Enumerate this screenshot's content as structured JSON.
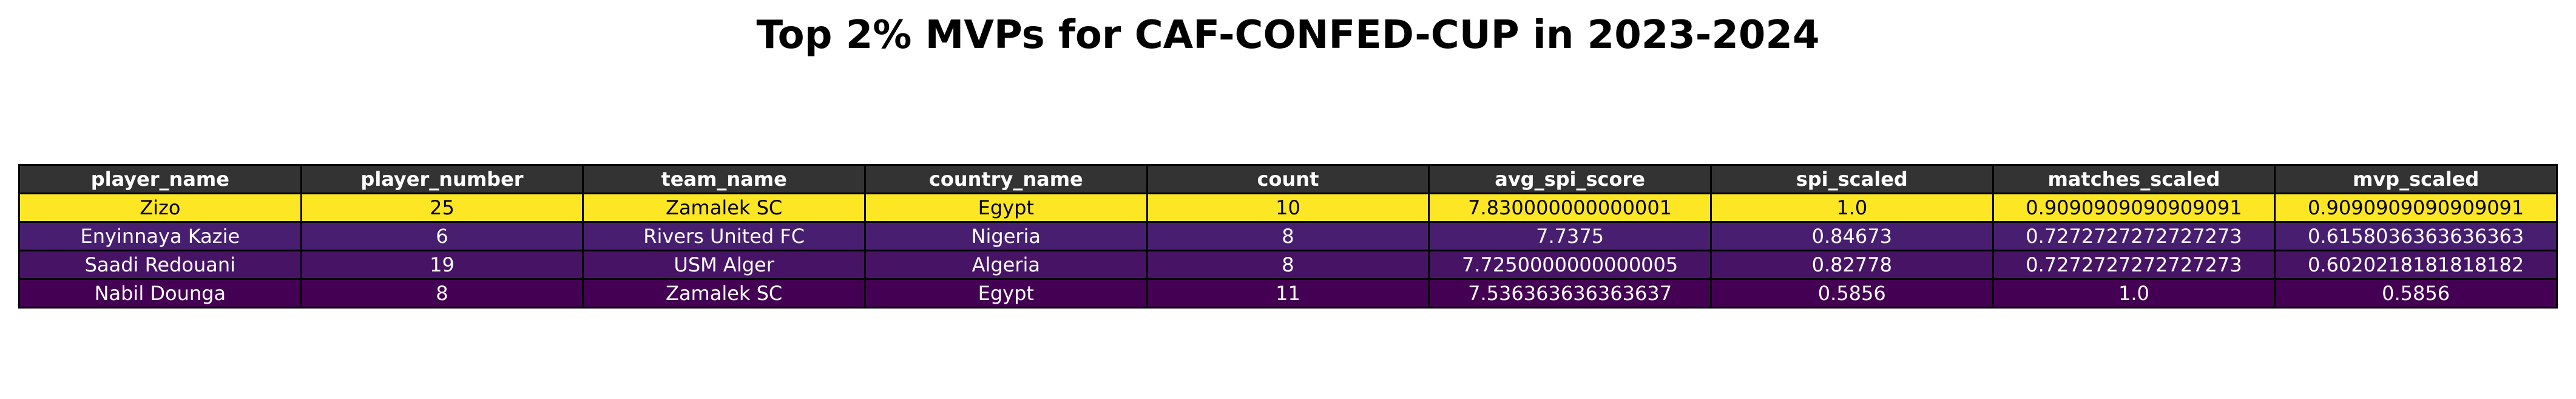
{
  "chart_data": {
    "type": "table",
    "title": "Top 2% MVPs for CAF-CONFED-CUP in 2023-2024",
    "columns": [
      "player_name",
      "player_number",
      "team_name",
      "country_name",
      "count",
      "avg_spi_score",
      "spi_scaled",
      "matches_scaled",
      "mvp_scaled"
    ],
    "rows": [
      {
        "cells": [
          "Zizo",
          "25",
          "Zamalek SC",
          "Egypt",
          "10",
          "7.830000000000001",
          "1.0",
          "0.9090909090909091",
          "0.9090909090909091"
        ],
        "color": "#fde725"
      },
      {
        "cells": [
          "Enyinnaya Kazie",
          "6",
          "Rivers United FC",
          "Nigeria",
          "8",
          "7.7375",
          "0.84673",
          "0.7272727272727273",
          "0.6158036363636363"
        ],
        "color": "#481f70"
      },
      {
        "cells": [
          "Saadi Redouani",
          "19",
          "USM Alger",
          "Algeria",
          "8",
          "7.7250000000000005",
          "0.82778",
          "0.7272727272727273",
          "0.6020218181818182"
        ],
        "color": "#471365"
      },
      {
        "cells": [
          "Nabil Dounga",
          "8",
          "Zamalek SC",
          "Egypt",
          "11",
          "7.536363636363637",
          "0.5856",
          "1.0",
          "0.5856"
        ],
        "color": "#440154"
      }
    ],
    "header_color": "#333333",
    "colormap": "viridis"
  }
}
